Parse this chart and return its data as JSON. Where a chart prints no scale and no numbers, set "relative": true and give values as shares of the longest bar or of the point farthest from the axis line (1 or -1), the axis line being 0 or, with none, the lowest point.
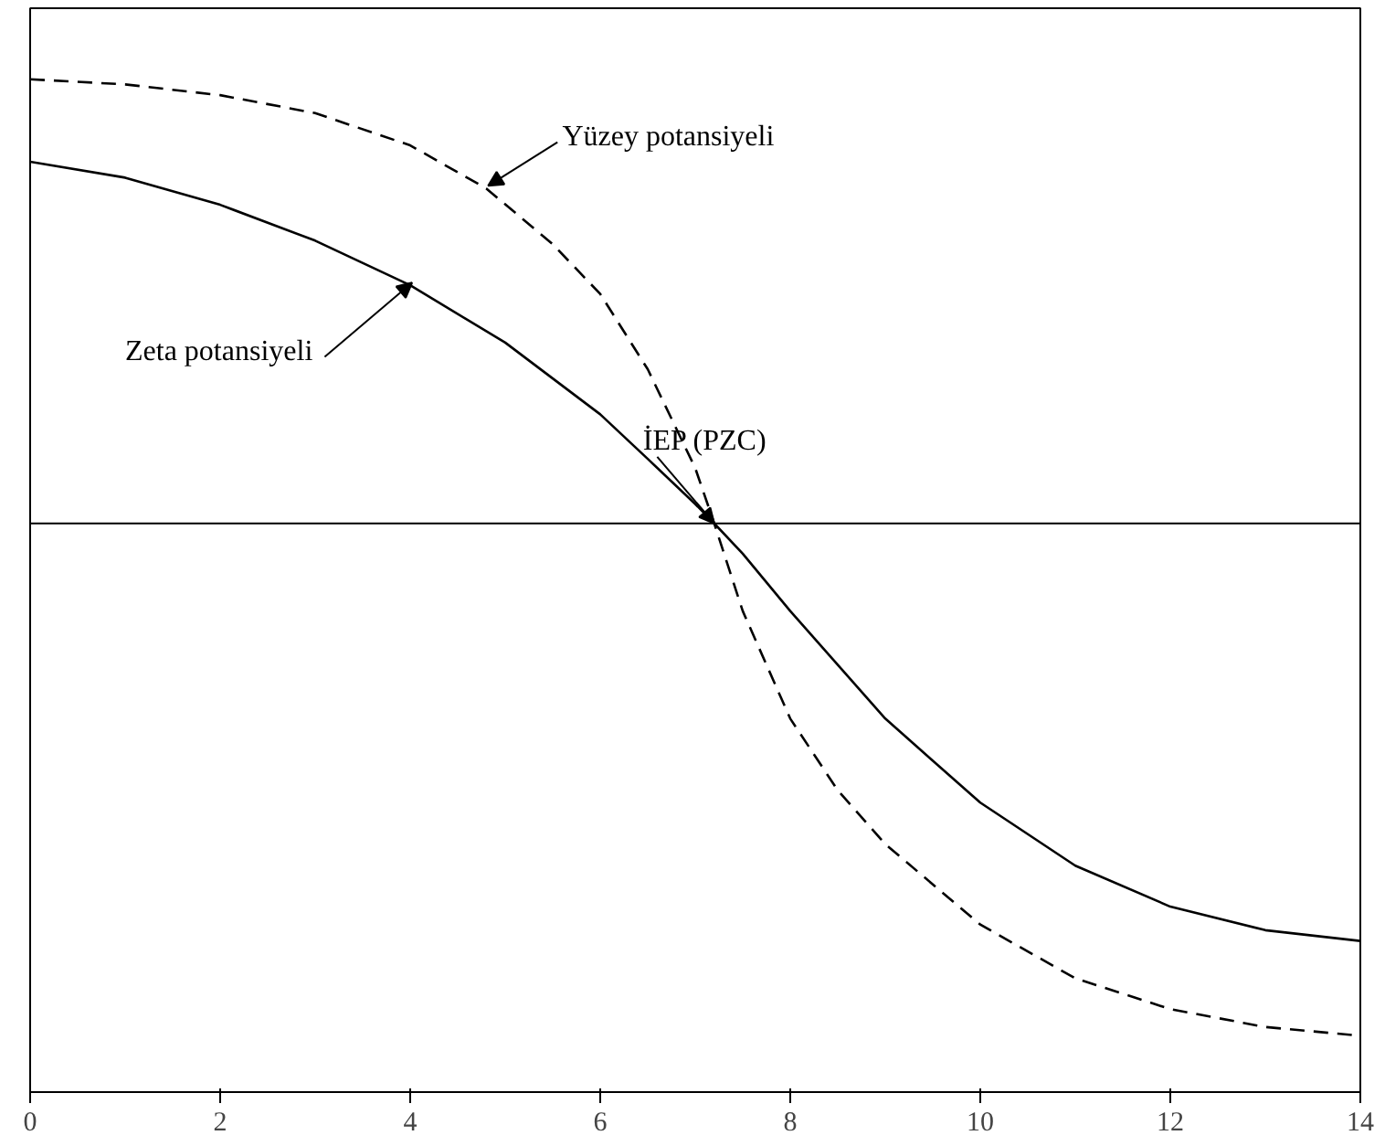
{
  "chart_data": {
    "type": "line",
    "relative": true,
    "x": [
      0,
      1,
      2,
      3,
      4,
      4.8,
      5.5,
      6,
      6.5,
      7,
      7.2,
      7.5,
      8,
      8.5,
      9,
      10,
      11,
      12,
      13,
      14
    ],
    "xlim": [
      0,
      14
    ],
    "xticks": [
      0,
      2,
      4,
      6,
      8,
      10,
      12,
      14
    ],
    "tick_labels": "x",
    "grid": false,
    "series": [
      {
        "name": "Yüzey potansiyeli",
        "color": "#000000",
        "line_style": "dashed",
        "values": [
          0.867,
          0.857,
          0.836,
          0.801,
          0.738,
          0.654,
          0.545,
          0.448,
          0.301,
          0.108,
          0,
          -0.171,
          -0.381,
          -0.521,
          -0.626,
          -0.783,
          -0.888,
          -0.948,
          -0.983,
          -1
        ]
      },
      {
        "name": "Zeta potansiyeli",
        "color": "#000000",
        "line_style": "solid",
        "x": [
          0,
          1,
          2,
          3,
          4,
          5,
          6,
          6.5,
          7,
          7.2,
          7.5,
          8,
          9,
          10,
          11,
          12,
          13,
          14
        ],
        "values": [
          0.706,
          0.675,
          0.622,
          0.552,
          0.465,
          0.353,
          0.213,
          0.126,
          0.038,
          0,
          -0.059,
          -0.171,
          -0.381,
          -0.545,
          -0.668,
          -0.748,
          -0.794,
          -0.815
        ]
      }
    ],
    "annotations": [
      {
        "text": "İEP (PZC)",
        "x": 7.2,
        "y": 0
      }
    ]
  }
}
